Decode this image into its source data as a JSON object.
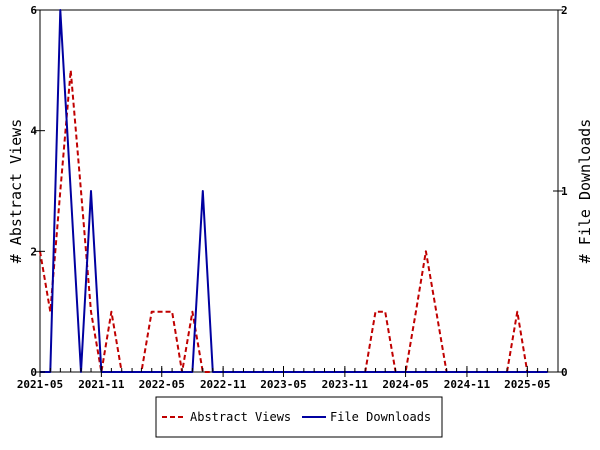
{
  "chart_data": {
    "type": "line",
    "x_tick_labels": [
      "2021-05",
      "2021-11",
      "2022-05",
      "2022-11",
      "2023-05",
      "2023-11",
      "2024-05",
      "2024-11",
      "2025-05"
    ],
    "x_tick_dates": [
      "2021-05-01",
      "2021-11-01",
      "2022-05-01",
      "2022-11-01",
      "2023-05-01",
      "2023-11-01",
      "2024-05-01",
      "2024-11-01",
      "2025-05-01"
    ],
    "x_range": [
      "2021-05-01",
      "2025-08-01"
    ],
    "y_left": {
      "label": "# Abstract Views",
      "range": [
        0,
        6
      ],
      "ticks": [
        "0",
        "2",
        "4",
        "6"
      ]
    },
    "y_right": {
      "label": "# File Downloads",
      "range": [
        0,
        2
      ],
      "ticks": [
        "0",
        "1",
        "2"
      ]
    },
    "series": [
      {
        "name": "Abstract Views",
        "axis": "left",
        "color": "#c00000",
        "style": "dashed",
        "x": [
          "2021-05",
          "2021-06",
          "2021-07",
          "2021-08",
          "2021-09",
          "2021-10",
          "2021-11",
          "2021-12",
          "2022-01",
          "2022-02",
          "2022-03",
          "2022-04",
          "2022-05",
          "2022-06",
          "2022-07",
          "2022-08",
          "2022-09",
          "2022-10",
          "2022-11",
          "2022-12",
          "2023-01",
          "2023-02",
          "2023-03",
          "2023-04",
          "2023-05",
          "2023-06",
          "2023-07",
          "2023-08",
          "2023-09",
          "2023-10",
          "2023-11",
          "2023-12",
          "2024-01",
          "2024-02",
          "2024-03",
          "2024-04",
          "2024-05",
          "2024-06",
          "2024-07",
          "2024-08",
          "2024-09",
          "2024-10",
          "2024-11",
          "2024-12",
          "2025-01",
          "2025-02",
          "2025-03",
          "2025-04",
          "2025-05",
          "2025-06",
          "2025-07"
        ],
        "values": [
          2,
          1,
          3,
          5,
          3,
          1,
          0,
          1,
          0,
          0,
          0,
          1,
          1,
          1,
          0,
          1,
          0,
          0,
          0,
          0,
          0,
          0,
          0,
          0,
          0,
          0,
          0,
          0,
          0,
          0,
          0,
          0,
          0,
          1,
          1,
          0,
          0,
          1,
          2,
          1,
          0,
          0,
          0,
          0,
          0,
          0,
          0,
          1,
          0,
          0,
          0
        ]
      },
      {
        "name": "File Downloads",
        "axis": "right",
        "color": "#0000a0",
        "style": "solid",
        "x": [
          "2021-05",
          "2021-06",
          "2021-07",
          "2021-08",
          "2021-09",
          "2021-10",
          "2021-11",
          "2021-12",
          "2022-01",
          "2022-02",
          "2022-03",
          "2022-04",
          "2022-05",
          "2022-06",
          "2022-07",
          "2022-08",
          "2022-09",
          "2022-10",
          "2022-11",
          "2022-12",
          "2023-01",
          "2023-02",
          "2023-03",
          "2023-04",
          "2023-05",
          "2023-06",
          "2023-07",
          "2023-08",
          "2023-09",
          "2023-10",
          "2023-11",
          "2023-12",
          "2024-01",
          "2024-02",
          "2024-03",
          "2024-04",
          "2024-05",
          "2024-06",
          "2024-07",
          "2024-08",
          "2024-09",
          "2024-10",
          "2024-11",
          "2024-12",
          "2025-01",
          "2025-02",
          "2025-03",
          "2025-04",
          "2025-05",
          "2025-06",
          "2025-07"
        ],
        "values": [
          0,
          0,
          2,
          1,
          0,
          1,
          0,
          0,
          0,
          0,
          0,
          0,
          0,
          0,
          0,
          0,
          1,
          0,
          0,
          0,
          0,
          0,
          0,
          0,
          0,
          0,
          0,
          0,
          0,
          0,
          0,
          0,
          0,
          0,
          0,
          0,
          0,
          0,
          0,
          0,
          0,
          0,
          0,
          0,
          0,
          0,
          0,
          0,
          0,
          0,
          0
        ]
      }
    ],
    "legend": {
      "placement": "bottom-center",
      "entries": [
        "Abstract Views",
        "File Downloads"
      ]
    },
    "grid": false
  }
}
